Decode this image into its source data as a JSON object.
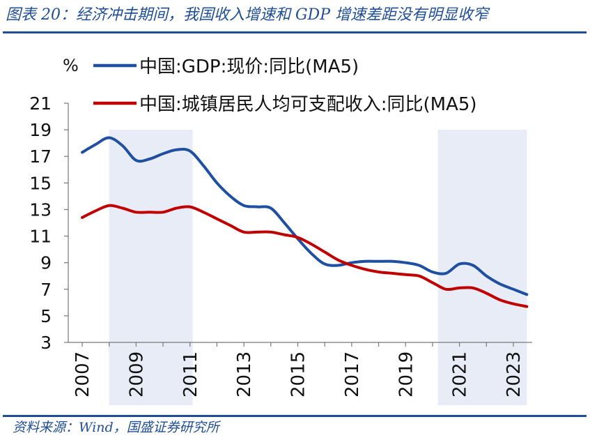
{
  "figure": {
    "title": "图表 20：经济冲击期间，我国收入增速和 GDP 增速差距没有明显收窄",
    "source": "资料来源：Wind，国盛证券研究所"
  },
  "chart_data": {
    "type": "line",
    "unit_label": "%",
    "ylim": [
      3,
      21
    ],
    "yticks": [
      3,
      5,
      7,
      9,
      11,
      13,
      15,
      17,
      19,
      21
    ],
    "xlim": [
      2007,
      2023
    ],
    "xticks": [
      2007,
      2009,
      2011,
      2013,
      2015,
      2017,
      2019,
      2021,
      2023
    ],
    "shaded_periods": [
      [
        2008.0,
        2011.1
      ],
      [
        2020.2,
        2023.5
      ]
    ],
    "shade_color": "#e8ecf6",
    "grid": false,
    "legend_position": "top-left",
    "series": [
      {
        "name": "中国:GDP:现价:同比(MA5)",
        "color": "#1f4fa0",
        "x": [
          2007.0,
          2007.5,
          2008.0,
          2008.5,
          2009.0,
          2009.5,
          2010.0,
          2010.5,
          2011.0,
          2011.5,
          2012.0,
          2012.5,
          2013.0,
          2013.5,
          2014.0,
          2014.5,
          2015.0,
          2015.5,
          2016.0,
          2016.5,
          2017.0,
          2017.5,
          2018.0,
          2018.5,
          2019.0,
          2019.5,
          2020.0,
          2020.5,
          2021.0,
          2021.5,
          2022.0,
          2022.5,
          2023.0,
          2023.5
        ],
        "y": [
          17.3,
          17.9,
          18.4,
          17.8,
          16.7,
          16.8,
          17.2,
          17.5,
          17.4,
          16.3,
          15.0,
          14.0,
          13.3,
          13.2,
          13.1,
          12.0,
          10.8,
          9.7,
          8.9,
          8.8,
          9.0,
          9.1,
          9.1,
          9.1,
          9.0,
          8.8,
          8.3,
          8.2,
          8.9,
          8.8,
          8.0,
          7.4,
          7.0,
          6.6
        ]
      },
      {
        "name": "中国:城镇居民人均可支配收入:同比(MA5)",
        "color": "#c00000",
        "x": [
          2007.0,
          2007.5,
          2008.0,
          2008.5,
          2009.0,
          2009.5,
          2010.0,
          2010.5,
          2011.0,
          2011.5,
          2012.0,
          2012.5,
          2013.0,
          2013.5,
          2014.0,
          2014.5,
          2015.0,
          2015.5,
          2016.0,
          2016.5,
          2017.0,
          2017.5,
          2018.0,
          2018.5,
          2019.0,
          2019.5,
          2020.0,
          2020.5,
          2021.0,
          2021.5,
          2022.0,
          2022.5,
          2023.0,
          2023.5
        ],
        "y": [
          12.4,
          12.9,
          13.3,
          13.1,
          12.8,
          12.8,
          12.8,
          13.1,
          13.2,
          12.8,
          12.3,
          11.8,
          11.3,
          11.3,
          11.3,
          11.1,
          10.9,
          10.4,
          9.8,
          9.2,
          8.8,
          8.5,
          8.3,
          8.2,
          8.1,
          8.0,
          7.5,
          7.0,
          7.1,
          7.1,
          6.7,
          6.2,
          5.9,
          5.7
        ]
      }
    ]
  }
}
